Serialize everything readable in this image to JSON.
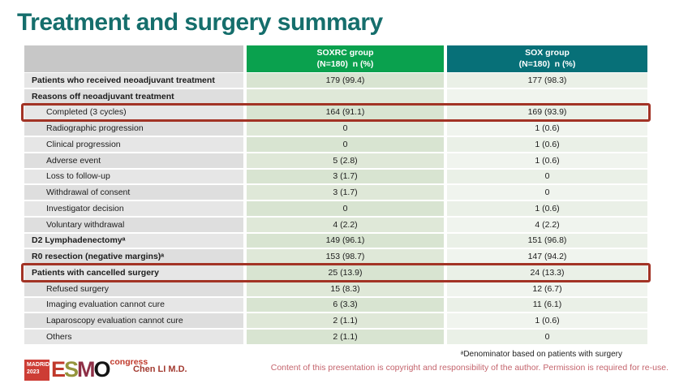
{
  "title": "Treatment and surgery summary",
  "table": {
    "header": {
      "blank": "",
      "soxrc": {
        "line1": "SOXRC group",
        "line2": "(N=180)  n (%)"
      },
      "sox": {
        "line1": "SOX group",
        "line2": "(N=180)  n (%)"
      }
    },
    "rows": [
      {
        "label": "Patients who received neoadjuvant treatment",
        "soxrc": "179 (99.4)",
        "sox": "177 (98.3)"
      },
      {
        "label": "Reasons off neoadjuvant treatment",
        "soxrc": "",
        "sox": ""
      },
      {
        "label": "Completed (3 cycles)",
        "soxrc": "164 (91.1)",
        "sox": "169 (93.9)"
      },
      {
        "label": "Radiographic progression",
        "soxrc": "0",
        "sox": "1 (0.6)"
      },
      {
        "label": "Clinical progression",
        "soxrc": "0",
        "sox": "1 (0.6)"
      },
      {
        "label": "Adverse event",
        "soxrc": "5 (2.8)",
        "sox": "1 (0.6)"
      },
      {
        "label": "Loss to follow-up",
        "soxrc": "3 (1.7)",
        "sox": "0"
      },
      {
        "label": "Withdrawal of consent",
        "soxrc": "3 (1.7)",
        "sox": "0"
      },
      {
        "label": "Investigator decision",
        "soxrc": "0",
        "sox": "1 (0.6)"
      },
      {
        "label": "Voluntary withdrawal",
        "soxrc": "4 (2.2)",
        "sox": "4 (2.2)"
      },
      {
        "label": "D2 Lymphadenectomyᵃ",
        "soxrc": "149 (96.1)",
        "sox": "151 (96.8)"
      },
      {
        "label": "R0 resection (negative margins)ᵃ",
        "soxrc": "153 (98.7)",
        "sox": "147 (94.2)"
      },
      {
        "label": "Patients with cancelled surgery",
        "soxrc": "25 (13.9)",
        "sox": "24 (13.3)"
      },
      {
        "label": "Refused surgery",
        "soxrc": "15 (8.3)",
        "sox": "12 (6.7)"
      },
      {
        "label": "Imaging evaluation cannot cure",
        "soxrc": "6 (3.3)",
        "sox": "11 (6.1)"
      },
      {
        "label": "Laparoscopy evaluation cannot cure",
        "soxrc": "2 (1.1)",
        "sox": "1 (0.6)"
      },
      {
        "label": "Others",
        "soxrc": "2 (1.1)",
        "sox": "0"
      }
    ]
  },
  "footer": {
    "logo": {
      "madrid_line1": "MADRID",
      "madrid_line2": "2023",
      "esmo": {
        "l1": "E",
        "l2": "S",
        "l3": "M",
        "l4": "O"
      },
      "congress": "congress"
    },
    "author": "Chen LI M.D.",
    "footnote": "ᵃDenominator based on patients with surgery",
    "copyright": "Content of this presentation is copyright and responsibility of the author.  Permission is required for re-use."
  },
  "colors": {
    "title_teal": "#156e6c",
    "header_green": "#0aa14e",
    "header_teal": "#077078",
    "header_gray": "#c7c7c7",
    "highlight_red": "#a23325",
    "soxrc_cell_green": "#d8e4d1",
    "sox_cell_green": "#eaf0e7",
    "copyright_pink": "#c4646d",
    "author_red": "#a23a30"
  }
}
